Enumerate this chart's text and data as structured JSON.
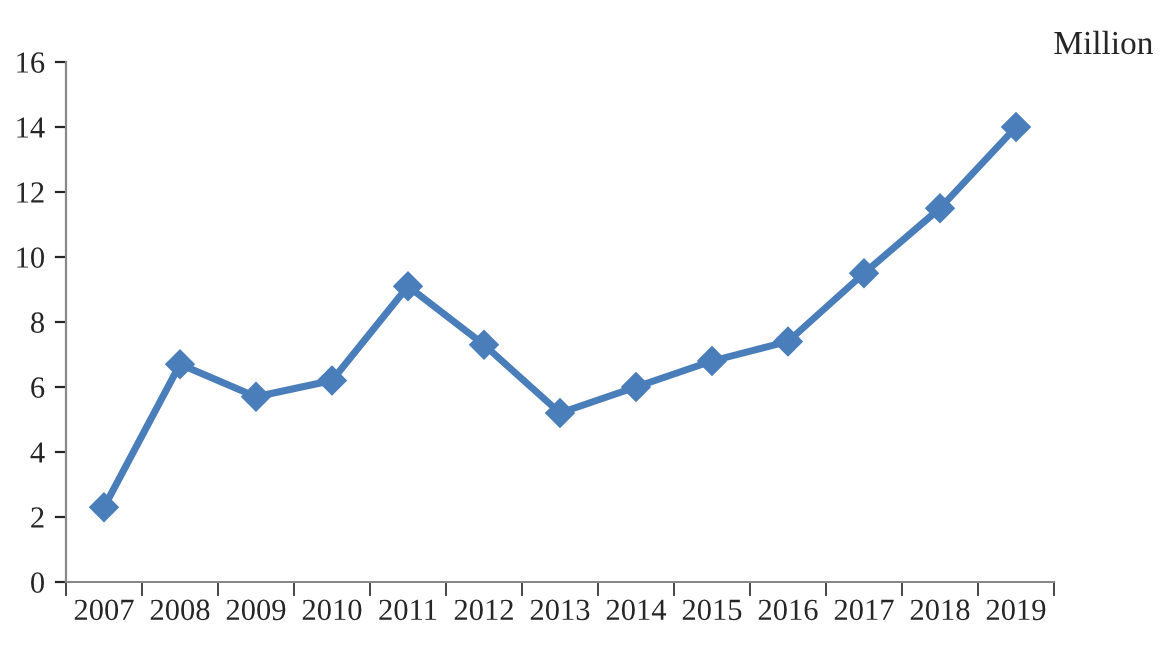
{
  "chart_data": {
    "type": "line",
    "ylabel": "Million",
    "categories": [
      "2007",
      "2008",
      "2009",
      "2010",
      "2011",
      "2012",
      "2013",
      "2014",
      "2015",
      "2016",
      "2017",
      "2018",
      "2019"
    ],
    "series": [
      {
        "color": "#4a7ebb",
        "values": [
          2.3,
          6.7,
          5.7,
          6.2,
          9.1,
          7.3,
          5.2,
          6.0,
          6.8,
          7.4,
          9.5,
          11.5,
          14.0
        ]
      }
    ],
    "ylim": [
      0,
      16
    ],
    "yticks": [
      0,
      2,
      4,
      6,
      8,
      10,
      12,
      14,
      16
    ],
    "grid": false,
    "legend": false,
    "marker": "diamond",
    "line_style": "solid"
  }
}
